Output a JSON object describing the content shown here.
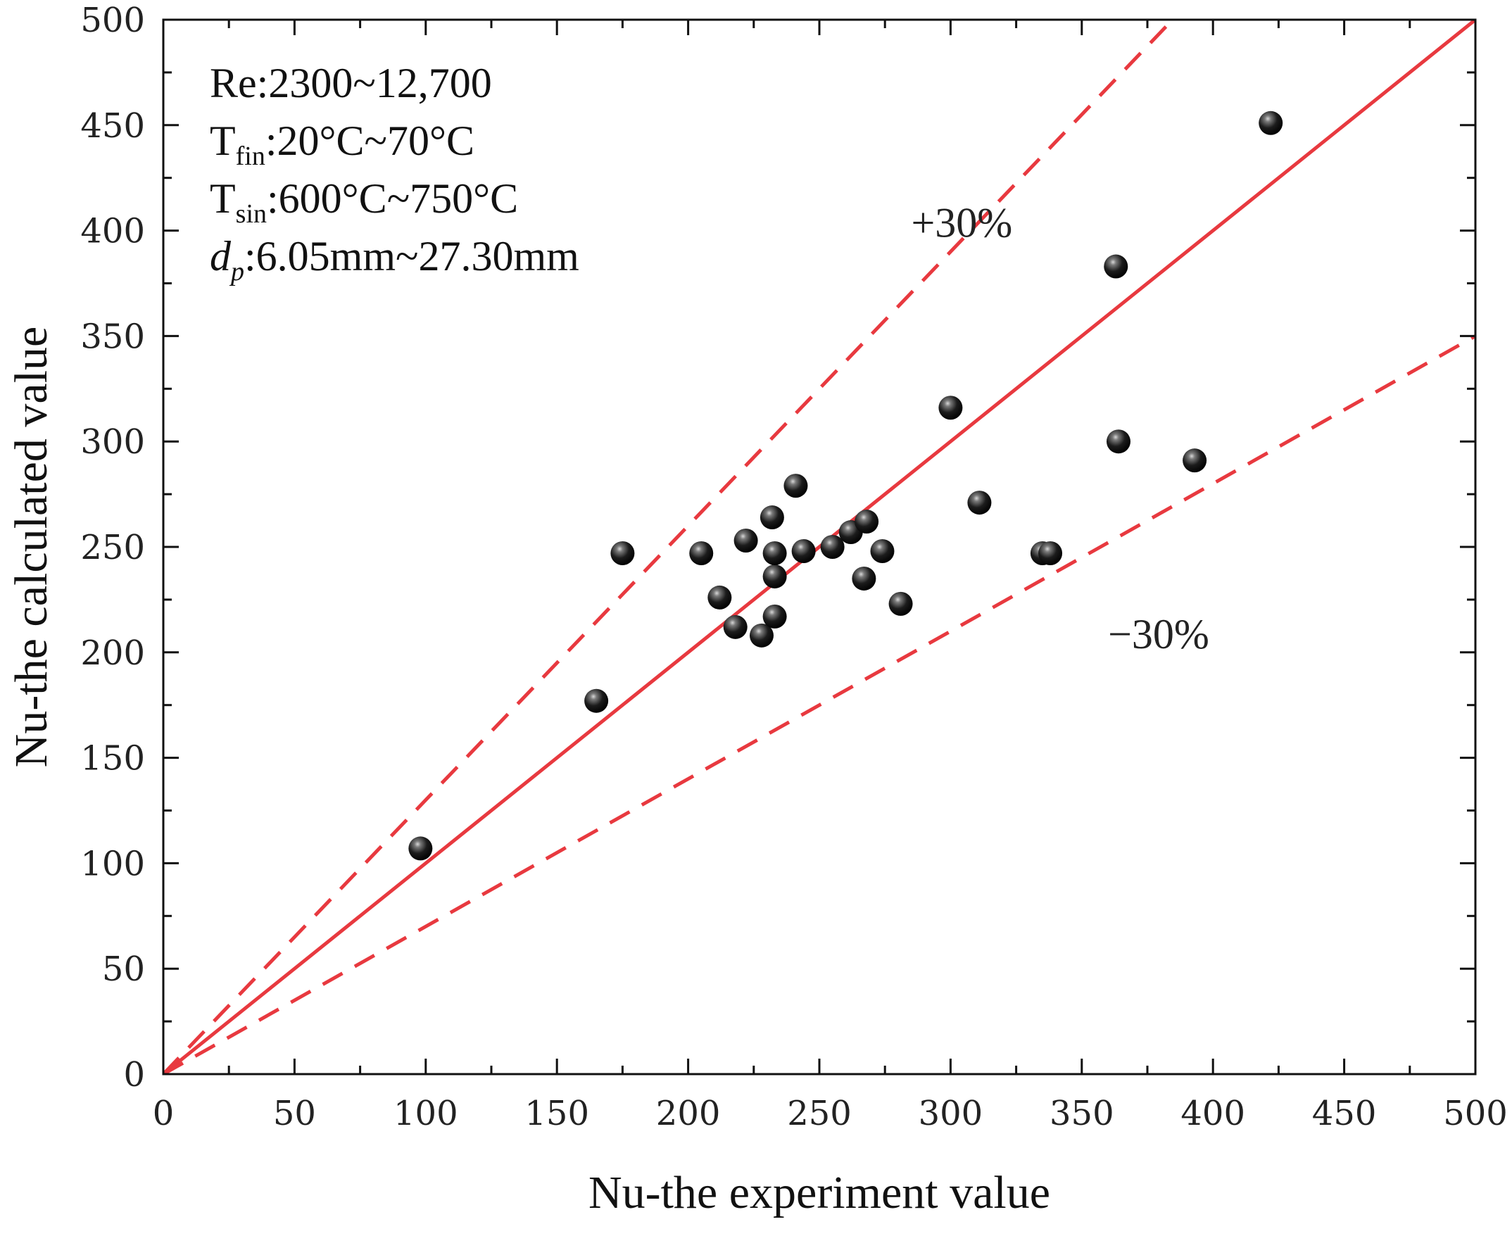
{
  "chart_data": {
    "type": "scatter",
    "xlabel": "Nu-the experiment value",
    "ylabel": "Nu-the calculated value",
    "xlim": [
      0,
      500
    ],
    "ylim": [
      0,
      500
    ],
    "xticks": [
      0,
      50,
      100,
      150,
      200,
      250,
      300,
      350,
      400,
      450,
      500
    ],
    "yticks": [
      0,
      50,
      100,
      150,
      200,
      250,
      300,
      350,
      400,
      450,
      500
    ],
    "grid": false,
    "info_lines": [
      {
        "main": "Re:2300~12,700",
        "sub": "",
        "rest": "",
        "italic_main": false
      },
      {
        "main": "T",
        "sub": "fin",
        "rest": ":20°C~70°C",
        "italic_main": false
      },
      {
        "main": "T",
        "sub": "sin",
        "rest": ":600°C~750°C",
        "italic_main": false
      },
      {
        "main": "d",
        "sub": "p",
        "rest": ":6.05mm~27.30mm",
        "italic_main": true
      }
    ],
    "reference_lines": [
      {
        "name": "y = x",
        "slope": 1.0,
        "style": "solid",
        "color": "#e8393f"
      },
      {
        "name": "+30%",
        "slope": 1.3,
        "style": "dashed",
        "color": "#e8393f"
      },
      {
        "name": "-30%",
        "slope": 0.7,
        "style": "dashed",
        "color": "#e8393f"
      }
    ],
    "annotations": [
      {
        "text": "+30%",
        "x": 285,
        "y": 397
      },
      {
        "text": "−30%",
        "x": 360,
        "y": 202
      }
    ],
    "series": [
      {
        "name": "data",
        "points": [
          {
            "x": 98,
            "y": 107
          },
          {
            "x": 165,
            "y": 177
          },
          {
            "x": 175,
            "y": 247
          },
          {
            "x": 205,
            "y": 247
          },
          {
            "x": 212,
            "y": 226
          },
          {
            "x": 218,
            "y": 212
          },
          {
            "x": 222,
            "y": 253
          },
          {
            "x": 228,
            "y": 208
          },
          {
            "x": 232,
            "y": 264
          },
          {
            "x": 233,
            "y": 236
          },
          {
            "x": 233,
            "y": 247
          },
          {
            "x": 233,
            "y": 217
          },
          {
            "x": 241,
            "y": 279
          },
          {
            "x": 244,
            "y": 248
          },
          {
            "x": 255,
            "y": 250
          },
          {
            "x": 262,
            "y": 257
          },
          {
            "x": 267,
            "y": 235
          },
          {
            "x": 268,
            "y": 262
          },
          {
            "x": 274,
            "y": 248
          },
          {
            "x": 281,
            "y": 223
          },
          {
            "x": 300,
            "y": 316
          },
          {
            "x": 311,
            "y": 271
          },
          {
            "x": 335,
            "y": 247
          },
          {
            "x": 338,
            "y": 247
          },
          {
            "x": 363,
            "y": 383
          },
          {
            "x": 364,
            "y": 300
          },
          {
            "x": 393,
            "y": 291
          },
          {
            "x": 422,
            "y": 451
          }
        ]
      }
    ]
  }
}
